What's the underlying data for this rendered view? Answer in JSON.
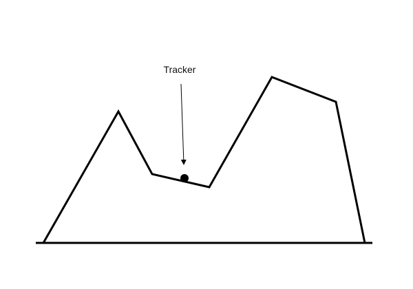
{
  "diagram": {
    "annotation_label": "Tracker",
    "colors": {
      "stroke": "#000000",
      "tracker": "#000000",
      "background": "#ffffff",
      "label": "#111111"
    }
  }
}
